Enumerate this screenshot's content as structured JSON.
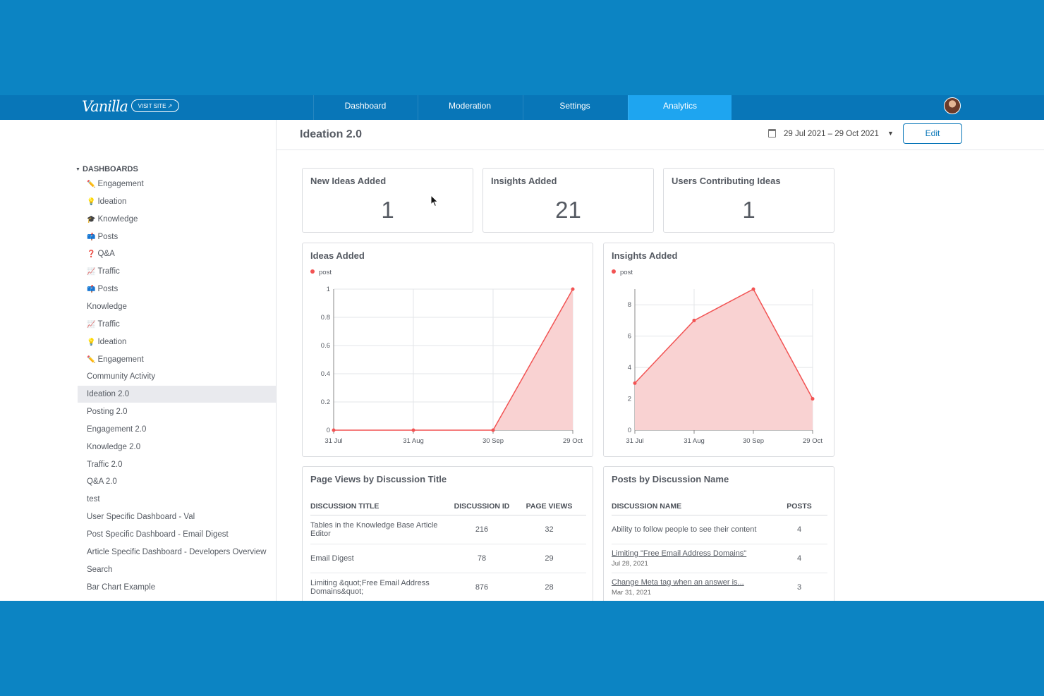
{
  "app": {
    "logo": "Vanilla",
    "visit_site": "VISIT SITE ↗",
    "tabs": [
      "Dashboard",
      "Moderation",
      "Settings",
      "Analytics"
    ],
    "active_tab": "Analytics"
  },
  "sidebar": {
    "heading": "DASHBOARDS",
    "items": [
      {
        "emoji": "✏️",
        "label": "Engagement"
      },
      {
        "emoji": "💡",
        "label": "Ideation"
      },
      {
        "emoji": "🎓",
        "label": "Knowledge"
      },
      {
        "emoji": "📫",
        "label": "Posts"
      },
      {
        "emoji": "❓",
        "label": "Q&A"
      },
      {
        "emoji": "📈",
        "label": "Traffic"
      },
      {
        "emoji": "📫",
        "label": "Posts"
      },
      {
        "emoji": "",
        "label": "Knowledge"
      },
      {
        "emoji": "📈",
        "label": "Traffic"
      },
      {
        "emoji": "💡",
        "label": "Ideation"
      },
      {
        "emoji": "✏️",
        "label": "Engagement"
      },
      {
        "emoji": "",
        "label": "Community Activity"
      },
      {
        "emoji": "",
        "label": "Ideation 2.0",
        "active": true
      },
      {
        "emoji": "",
        "label": "Posting 2.0"
      },
      {
        "emoji": "",
        "label": "Engagement 2.0"
      },
      {
        "emoji": "",
        "label": "Knowledge 2.0"
      },
      {
        "emoji": "",
        "label": "Traffic 2.0"
      },
      {
        "emoji": "",
        "label": "Q&A 2.0"
      },
      {
        "emoji": "",
        "label": "test"
      },
      {
        "emoji": "",
        "label": "User Specific Dashboard - Val"
      },
      {
        "emoji": "",
        "label": "Post Specific Dashboard - Email Digest"
      },
      {
        "emoji": "",
        "label": "Article Specific Dashboard - Developers Overview"
      },
      {
        "emoji": "",
        "label": "Search"
      },
      {
        "emoji": "",
        "label": "Bar Chart Example"
      }
    ]
  },
  "header": {
    "title": "Ideation 2.0",
    "date_range": "29 Jul 2021  –  29 Oct 2021",
    "edit_label": "Edit"
  },
  "stats": [
    {
      "label": "New Ideas Added",
      "value": "1"
    },
    {
      "label": "Insights Added",
      "value": "21"
    },
    {
      "label": "Users Contributing Ideas",
      "value": "1"
    }
  ],
  "colors": {
    "accent": "#0876b8",
    "active_tab": "#1ea5f0",
    "series": "#f25353",
    "series_fill": "#f9d2d2"
  },
  "chart_data": [
    {
      "type": "area",
      "title": "Ideas Added",
      "series": [
        {
          "name": "post",
          "values": [
            0,
            0,
            0,
            1
          ]
        }
      ],
      "x": [
        "31 Jul",
        "31 Aug",
        "30 Sep",
        "29 Oct"
      ],
      "yticks": [
        "0",
        "0.2",
        "0.4",
        "0.6",
        "0.8",
        "1"
      ],
      "ylim": [
        0,
        1
      ],
      "grid": true,
      "legend": "top-left"
    },
    {
      "type": "area",
      "title": "Insights Added",
      "series": [
        {
          "name": "post",
          "values": [
            3,
            7,
            9,
            2
          ]
        }
      ],
      "x": [
        "31 Jul",
        "31 Aug",
        "30 Sep",
        "29 Oct"
      ],
      "yticks": [
        "0",
        "2",
        "4",
        "6",
        "8"
      ],
      "ylim": [
        0,
        9
      ],
      "grid": true,
      "legend": "top-left"
    }
  ],
  "tables": {
    "page_views": {
      "title": "Page Views by Discussion Title",
      "columns": [
        "DISCUSSION TITLE",
        "DISCUSSION ID",
        "PAGE VIEWS"
      ],
      "rows": [
        {
          "title": "Tables in the Knowledge Base Article Editor",
          "id": "216",
          "views": "32"
        },
        {
          "title": "Email Digest",
          "id": "78",
          "views": "29"
        },
        {
          "title": "Limiting &quot;Free Email Address Domains&quot;",
          "id": "876",
          "views": "28"
        }
      ]
    },
    "posts": {
      "title": "Posts by Discussion Name",
      "columns": [
        "DISCUSSION NAME",
        "POSTS"
      ],
      "rows": [
        {
          "name": "Ability to follow people to see their content",
          "date": "",
          "posts": "4"
        },
        {
          "name": "Limiting \"Free Email Address Domains\"",
          "date": "Jul 28, 2021",
          "posts": "4"
        },
        {
          "name": "Change Meta tag when an answer is...",
          "date": "Mar 31, 2021",
          "posts": "3"
        }
      ]
    }
  }
}
